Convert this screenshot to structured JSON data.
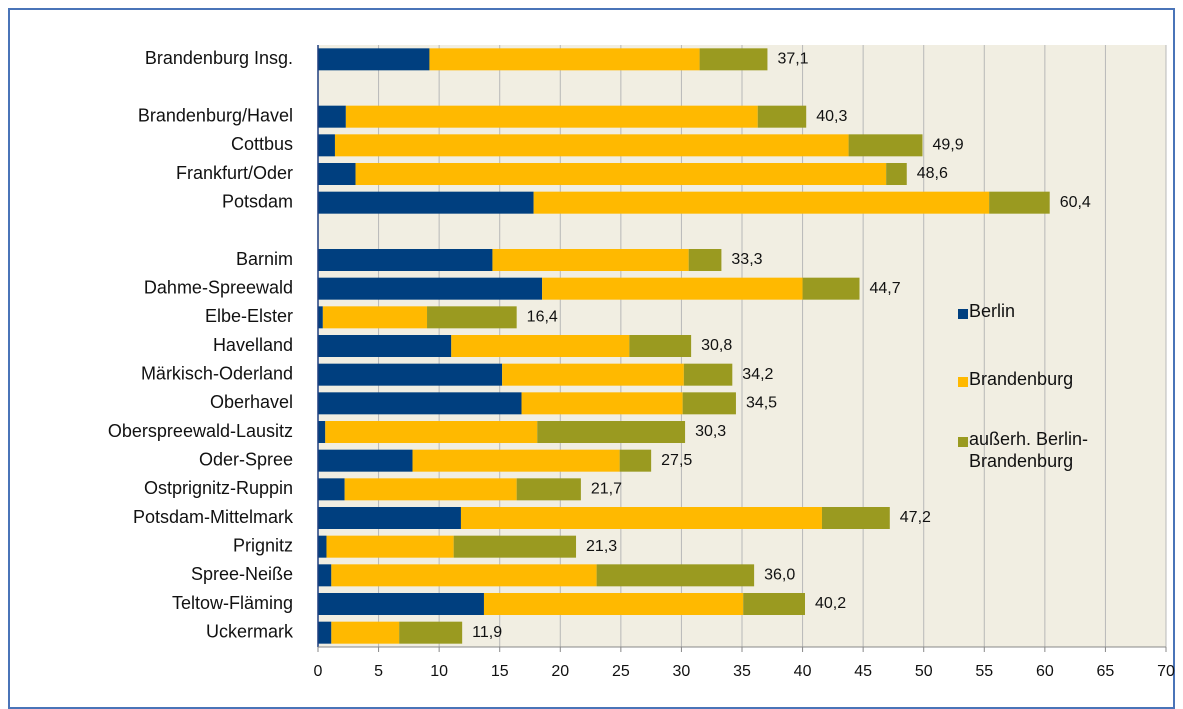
{
  "chart_data": {
    "type": "bar",
    "orientation": "horizontal",
    "stacked": true,
    "categories": [
      "Brandenburg Insg.",
      null,
      "Brandenburg/Havel",
      "Cottbus",
      "Frankfurt/Oder",
      "Potsdam",
      null,
      "Barnim",
      "Dahme-Spreewald",
      "Elbe-Elster",
      "Havelland",
      "Märkisch-Oderland",
      "Oberhavel",
      "Oberspreewald-Lausitz",
      "Oder-Spree",
      "Ostprignitz-Ruppin",
      "Potsdam-Mittelmark",
      "Prignitz",
      "Spree-Neiße",
      "Teltow-Fläming",
      "Uckermark"
    ],
    "series": [
      {
        "name": "Berlin",
        "color": "#003f7f",
        "values": [
          9.2,
          null,
          2.3,
          1.4,
          3.1,
          17.8,
          null,
          14.4,
          18.5,
          0.4,
          11.0,
          15.2,
          16.8,
          0.6,
          7.8,
          2.2,
          11.8,
          0.7,
          1.1,
          13.7,
          1.1
        ]
      },
      {
        "name": "Brandenburg",
        "color": "#ffb900",
        "values": [
          22.3,
          null,
          34.0,
          42.4,
          43.8,
          37.6,
          null,
          16.2,
          21.5,
          8.6,
          14.7,
          15.0,
          13.3,
          17.5,
          17.1,
          14.2,
          29.8,
          10.5,
          21.9,
          21.4,
          5.6
        ]
      },
      {
        "name": "außerh. Berlin-Brandenburg",
        "color": "#9a9a20",
        "values": [
          5.6,
          null,
          4.0,
          6.1,
          1.7,
          5.0,
          null,
          2.7,
          4.7,
          7.4,
          5.1,
          4.0,
          4.4,
          12.2,
          2.6,
          5.3,
          5.6,
          10.1,
          13.0,
          5.1,
          5.2
        ]
      }
    ],
    "totals": [
      37.1,
      null,
      40.3,
      49.9,
      48.6,
      60.4,
      null,
      33.3,
      44.7,
      16.4,
      30.8,
      34.2,
      34.5,
      30.3,
      27.5,
      21.7,
      47.2,
      21.3,
      36.0,
      40.2,
      11.9
    ],
    "totals_labels": [
      "37,1",
      null,
      "40,3",
      "49,9",
      "48,6",
      "60,4",
      null,
      "33,3",
      "44,7",
      "16,4",
      "30,8",
      "34,2",
      "34,5",
      "30,3",
      "27,5",
      "21,7",
      "47,2",
      "21,3",
      "36,0",
      "40,2",
      "11,9"
    ],
    "xlim": [
      0,
      70
    ],
    "xticks": [
      0,
      5,
      10,
      15,
      20,
      25,
      30,
      35,
      40,
      45,
      50,
      55,
      60,
      65,
      70
    ],
    "grid": true
  }
}
